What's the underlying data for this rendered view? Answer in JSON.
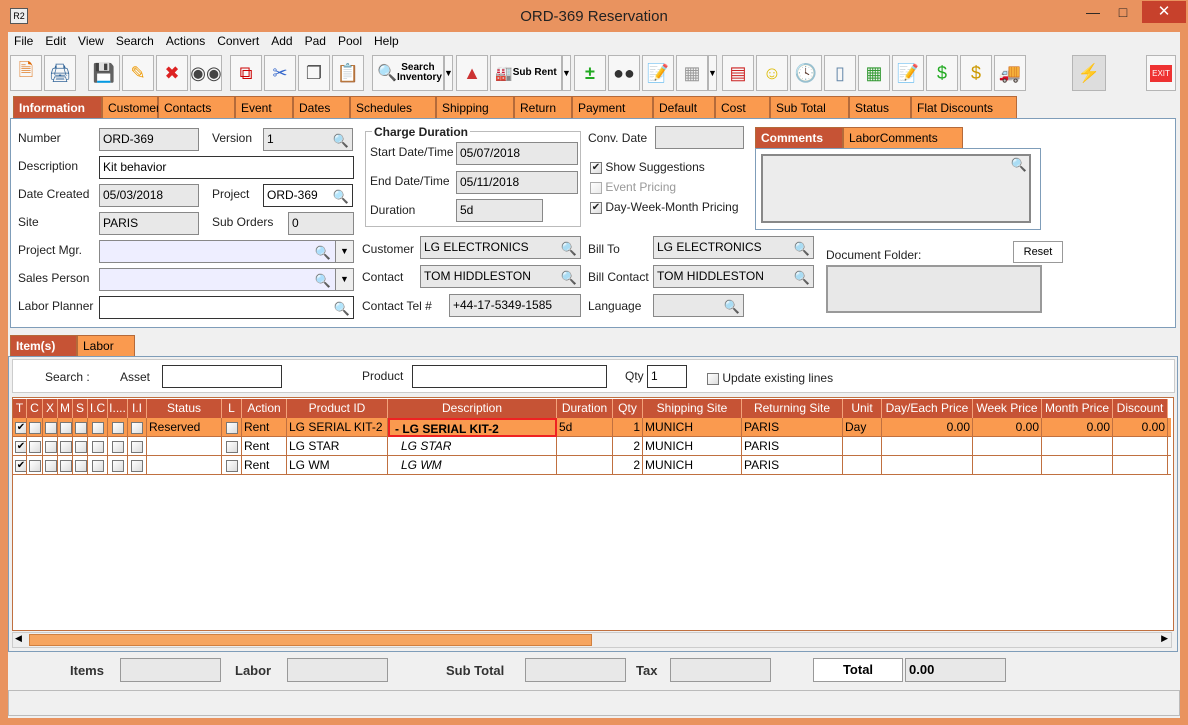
{
  "window": {
    "title": "ORD-369 Reservation",
    "app_icon": "R2"
  },
  "menu": [
    "File",
    "Edit",
    "View",
    "Search",
    "Actions",
    "Convert",
    "Add",
    "Pad",
    "Pool",
    "Help"
  ],
  "toolbar": {
    "search_inventory": "Search Inventory",
    "sub_rent": "Sub Rent",
    "exit": "EXIT"
  },
  "main_tabs": [
    "Information",
    "Customer",
    "Contacts",
    "Event",
    "Dates",
    "Schedules",
    "Shipping",
    "Return",
    "Payment",
    "Default",
    "Cost",
    "Sub Total",
    "Status",
    "Flat Discounts"
  ],
  "info": {
    "number_label": "Number",
    "number": "ORD-369",
    "version_label": "Version",
    "version": "1",
    "description_label": "Description",
    "description": "Kit behavior",
    "date_created_label": "Date Created",
    "date_created": "05/03/2018",
    "project_label": "Project",
    "project": "ORD-369",
    "site_label": "Site",
    "site": "PARIS",
    "sub_orders_label": "Sub Orders",
    "sub_orders": "0",
    "project_mgr_label": "Project Mgr.",
    "sales_person_label": "Sales Person",
    "labor_planner_label": "Labor Planner",
    "charge_duration_title": "Charge Duration",
    "start_label": "Start Date/Time",
    "start": "05/07/2018",
    "end_label": "End Date/Time",
    "end": "05/11/2018",
    "duration_label": "Duration",
    "duration": "5d",
    "conv_date_label": "Conv. Date",
    "show_suggestions": "Show Suggestions",
    "event_pricing": "Event Pricing",
    "dwm_pricing": "Day-Week-Month Pricing",
    "customer_label": "Customer",
    "customer": "LG ELECTRONICS",
    "contact_label": "Contact",
    "contact": "TOM HIDDLESTON",
    "contact_tel_label": "Contact Tel #",
    "contact_tel": "+44-17-5349-1585",
    "bill_to_label": "Bill To",
    "bill_to": "LG ELECTRONICS",
    "bill_contact_label": "Bill Contact",
    "bill_contact": "TOM HIDDLESTON",
    "language_label": "Language",
    "comments_tabs": [
      "Comments",
      "LaborComments"
    ],
    "document_folder_label": "Document Folder:",
    "reset": "Reset"
  },
  "item_tabs": [
    "Item(s)",
    "Labor"
  ],
  "search": {
    "search_label": "Search :",
    "asset_label": "Asset",
    "product_label": "Product",
    "qty_label": "Qty",
    "qty": "1",
    "update_existing": "Update existing lines"
  },
  "grid": {
    "columns": [
      "T",
      "C",
      "X",
      "M",
      "S",
      "I.C",
      "I....",
      "I.I",
      "Status",
      "L",
      "Action",
      "Product ID",
      "Description",
      "Duration",
      "Qty",
      "Shipping Site",
      "Returning Site",
      "Unit",
      "Day/Each Price",
      "Week Price",
      "Month Price",
      "Discount"
    ],
    "rows": [
      {
        "checked": true,
        "status": "Reserved",
        "action": "Rent",
        "product_id": "LG SERIAL KIT-2",
        "description": "-  LG SERIAL KIT-2",
        "duration": "5d",
        "qty": "1",
        "shipping_site": "MUNICH",
        "returning_site": "PARIS",
        "unit": "Day",
        "day_price": "0.00",
        "week_price": "0.00",
        "month_price": "0.00",
        "discount": "0.00"
      },
      {
        "checked": true,
        "status": "",
        "action": "Rent",
        "product_id": "LG STAR",
        "description": "LG STAR",
        "duration": "",
        "qty": "2",
        "shipping_site": "MUNICH",
        "returning_site": "PARIS",
        "unit": "",
        "day_price": "",
        "week_price": "",
        "month_price": "",
        "discount": ""
      },
      {
        "checked": true,
        "status": "",
        "action": "Rent",
        "product_id": "LG WM",
        "description": "LG WM",
        "duration": "",
        "qty": "2",
        "shipping_site": "MUNICH",
        "returning_site": "PARIS",
        "unit": "",
        "day_price": "",
        "week_price": "",
        "month_price": "",
        "discount": ""
      }
    ]
  },
  "footer": {
    "items_label": "Items",
    "labor_label": "Labor",
    "subtotal_label": "Sub Total",
    "tax_label": "Tax",
    "total_label": "Total",
    "total": "0.00"
  },
  "colors": {
    "window": "#e9935f",
    "tab": "#fa9a4f",
    "active_tab": "#c65335",
    "selected_row": "#fa9a4f"
  }
}
